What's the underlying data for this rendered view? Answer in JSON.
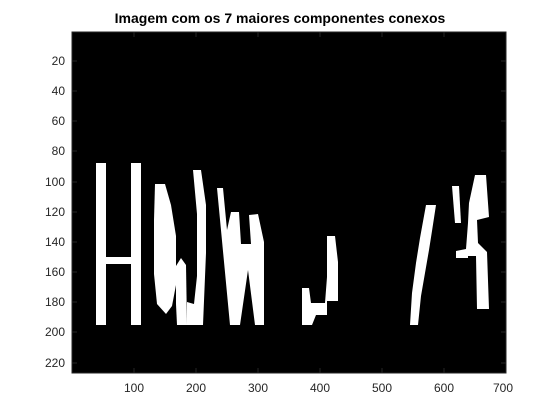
{
  "figure": {
    "title": "Imagem com os 7 maiores componentes conexos",
    "background_color": "#ffffff",
    "image_background_color": "#000000",
    "component_color": "#ffffff"
  },
  "axes": {
    "x_ticks": [
      "100",
      "200",
      "300",
      "400",
      "500",
      "600",
      "700"
    ],
    "y_ticks": [
      "20",
      "40",
      "60",
      "80",
      "100",
      "120",
      "140",
      "160",
      "180",
      "200",
      "220"
    ]
  }
}
